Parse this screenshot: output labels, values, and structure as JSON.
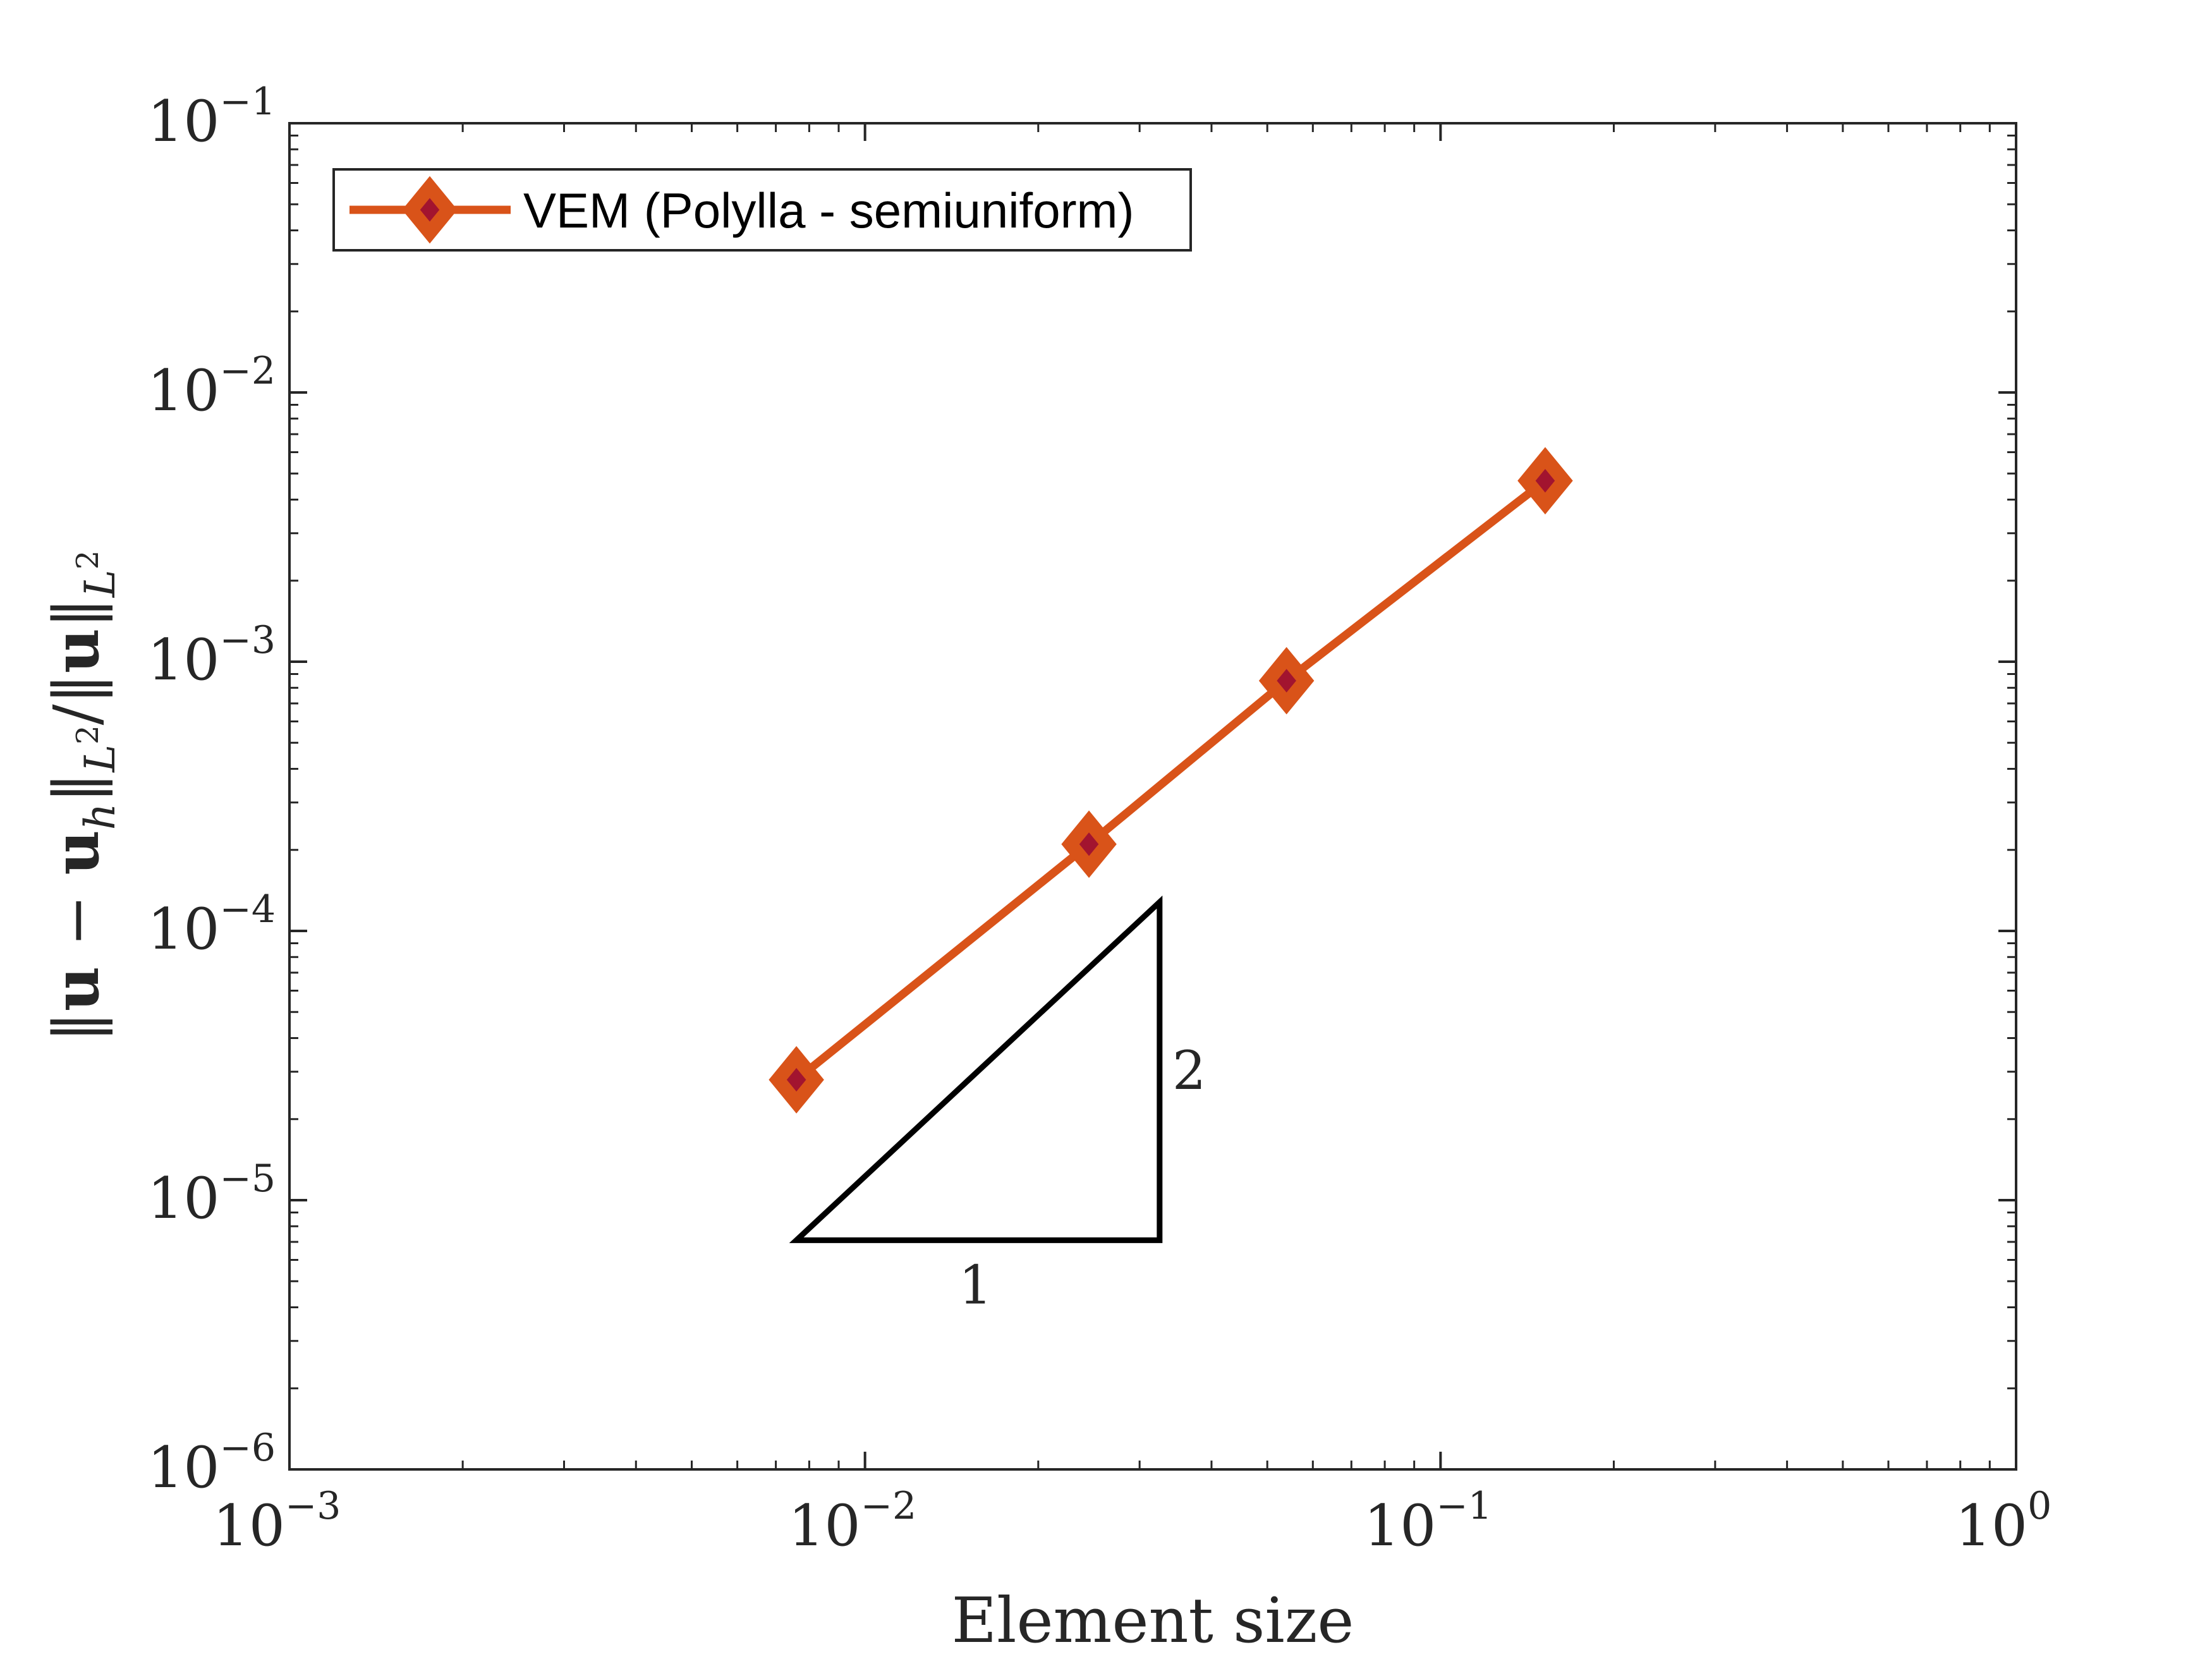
{
  "chart_data": {
    "type": "line",
    "xscale": "log",
    "yscale": "log",
    "xlim": [
      0.001,
      1
    ],
    "ylim": [
      1e-06,
      0.1
    ],
    "xlabel": "Element size",
    "ylabel": "‖u − u_h‖_{L²} / ‖u‖_{L²}",
    "x_ticks": [
      {
        "value": 0.001,
        "base": "10",
        "exp": "−3"
      },
      {
        "value": 0.01,
        "base": "10",
        "exp": "−2"
      },
      {
        "value": 0.1,
        "base": "10",
        "exp": "−1"
      },
      {
        "value": 1,
        "base": "10",
        "exp": "0"
      }
    ],
    "y_ticks": [
      {
        "value": 1e-06,
        "base": "10",
        "exp": "−6"
      },
      {
        "value": 1e-05,
        "base": "10",
        "exp": "−5"
      },
      {
        "value": 0.0001,
        "base": "10",
        "exp": "−4"
      },
      {
        "value": 0.001,
        "base": "10",
        "exp": "−3"
      },
      {
        "value": 0.01,
        "base": "10",
        "exp": "−2"
      },
      {
        "value": 0.1,
        "base": "10",
        "exp": "−1"
      }
    ],
    "series": [
      {
        "name": "VEM (Polylla - semiuniform)",
        "color": "#d95319",
        "marker": "diamond",
        "marker_face": "#a2142f",
        "x": [
          0.0076,
          0.0245,
          0.054,
          0.152
        ],
        "y": [
          2.8e-05,
          0.00021,
          0.00085,
          0.0047
        ]
      }
    ],
    "slope_triangle": {
      "vertices": [
        [
          0.0076,
          7.1e-06
        ],
        [
          0.0325,
          7.1e-06
        ],
        [
          0.0325,
          0.000128
        ]
      ],
      "run_label": "1",
      "rise_label": "2"
    },
    "legend_position": "top-left",
    "grid": false
  }
}
